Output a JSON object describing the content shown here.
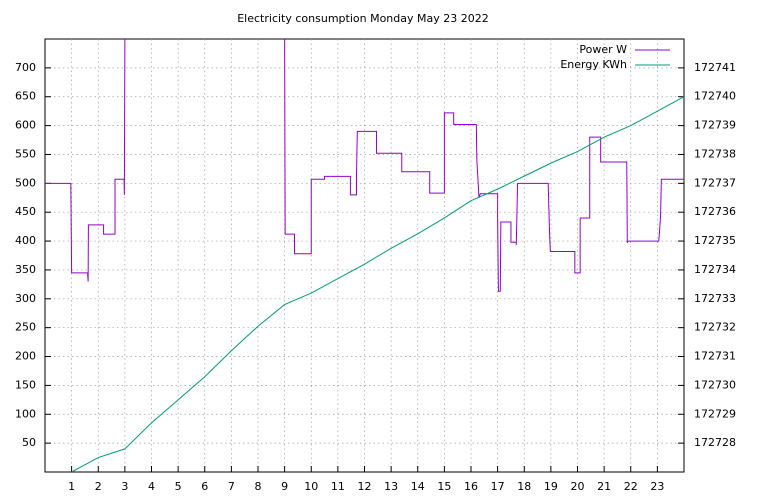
{
  "chart_data": {
    "type": "line",
    "title": "Electricity consumption Monday May 23 2022",
    "xlim": [
      0,
      24
    ],
    "xticks": [
      1,
      2,
      3,
      4,
      5,
      6,
      7,
      8,
      9,
      10,
      11,
      12,
      13,
      14,
      15,
      16,
      17,
      18,
      19,
      20,
      21,
      22,
      23
    ],
    "ylim": [
      0,
      750
    ],
    "yticks": [
      50,
      100,
      150,
      200,
      250,
      300,
      350,
      400,
      450,
      500,
      550,
      600,
      650,
      700
    ],
    "y2lim": [
      172727,
      172742
    ],
    "y2ticks": [
      172728,
      172729,
      172730,
      172731,
      172732,
      172733,
      172734,
      172735,
      172736,
      172737,
      172738,
      172739,
      172740,
      172741
    ],
    "grid": true,
    "legend": "top-right",
    "series": [
      {
        "name": "Power W",
        "color": "#9400d3",
        "step": true,
        "x": [
          0,
          0.97,
          0.98,
          1.0,
          1.6,
          1.62,
          1.63,
          2.2,
          2.2,
          2.63,
          2.63,
          2.97,
          2.98,
          3.0,
          null,
          9.0,
          9.02,
          9.37,
          9.37,
          10.0,
          10.0,
          10.5,
          10.5,
          11.47,
          11.47,
          11.7,
          11.7,
          11.73,
          12.45,
          12.45,
          13.4,
          13.4,
          14.45,
          14.45,
          15.0,
          15.0,
          15.35,
          15.35,
          16.2,
          16.22,
          16.3,
          16.35,
          17.0,
          17.0,
          17.03,
          17.1,
          17.12,
          17.5,
          17.5,
          17.7,
          17.7,
          17.75,
          18.9,
          18.9,
          18.95,
          18.98,
          19.9,
          19.9,
          20.1,
          20.1,
          20.46,
          20.46,
          20.87,
          20.87,
          21.85,
          21.87,
          21.9,
          23.05,
          23.08,
          23.12,
          23.15,
          24
        ],
        "values": [
          500,
          500,
          445,
          345,
          345,
          330,
          428,
          428,
          412,
          412,
          507,
          507,
          480,
          750,
          null,
          750,
          412,
          412,
          378,
          378,
          507,
          507,
          512,
          512,
          480,
          480,
          515,
          590,
          590,
          552,
          552,
          520,
          520,
          483,
          483,
          622,
          622,
          602,
          602,
          540,
          475,
          482,
          482,
          440,
          313,
          313,
          433,
          433,
          398,
          398,
          393,
          500,
          500,
          498,
          415,
          382,
          382,
          345,
          345,
          440,
          440,
          580,
          580,
          537,
          537,
          397,
          400,
          400,
          415,
          445,
          507,
          507
        ]
      },
      {
        "name": "Energy KWh",
        "color": "#009e73",
        "axis": "y2",
        "x": [
          1,
          2,
          3,
          4,
          5,
          6,
          7,
          8,
          9,
          10,
          11,
          12,
          13,
          14,
          15,
          16,
          17,
          18,
          19,
          20,
          21,
          22,
          23,
          24
        ],
        "values": [
          172727.0,
          172727.5,
          172727.8,
          172728.7,
          172729.5,
          172730.3,
          172731.2,
          172732.05,
          172732.8,
          172733.2,
          172733.7,
          172734.2,
          172734.75,
          172735.25,
          172735.8,
          172736.4,
          172736.8,
          172737.25,
          172737.7,
          172738.1,
          172738.6,
          172739.0,
          172739.5,
          172740.0
        ]
      }
    ]
  }
}
